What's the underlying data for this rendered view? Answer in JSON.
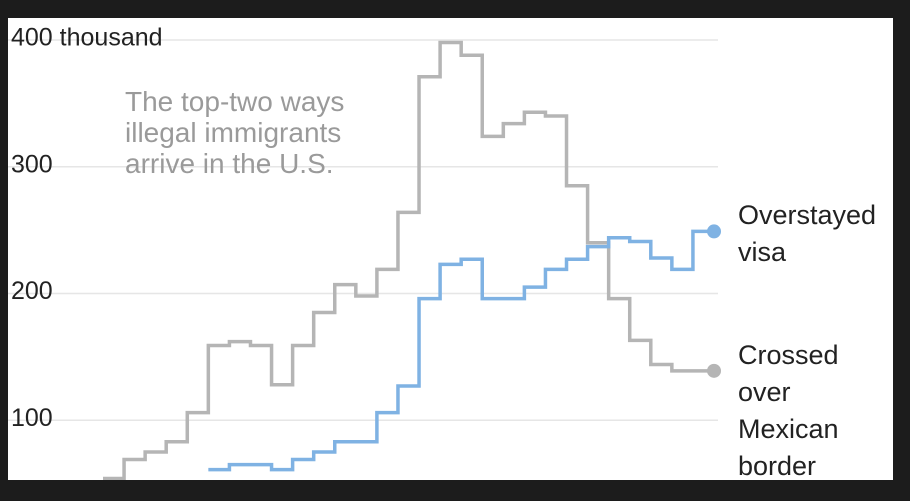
{
  "chart_data": {
    "type": "step",
    "annotation": "The top-two ways illegal immigrants arrive in the U.S.",
    "categories": [
      null,
      null,
      null,
      null,
      null,
      null,
      null,
      null,
      null,
      null,
      null,
      null,
      null,
      null,
      null,
      null,
      null,
      null,
      null,
      null,
      null,
      null,
      null,
      null,
      null,
      null,
      null,
      null,
      null
    ],
    "series": [
      {
        "name": "Overstayed visa",
        "color": "#7fb2e3",
        "values": [
          null,
          null,
          null,
          null,
          null,
          61,
          65,
          65,
          61,
          69,
          75,
          83,
          83,
          106,
          127,
          196,
          223,
          227,
          196,
          196,
          205,
          219,
          227,
          237,
          244,
          241,
          228,
          219,
          249
        ]
      },
      {
        "name": "Crossed over Mexican border",
        "color": "#b5b5b5",
        "values": [
          54,
          69,
          75,
          83,
          106,
          159,
          162,
          159,
          128,
          159,
          185,
          207,
          198,
          219,
          264,
          371,
          398,
          388,
          324,
          334,
          343,
          340,
          285,
          240,
          196,
          163,
          144,
          139,
          139
        ]
      }
    ],
    "ylim": [
      0,
      400
    ],
    "yticks": [
      100,
      200,
      300,
      {
        "value": 400,
        "label": "400 thousand"
      }
    ],
    "grid": true
  }
}
